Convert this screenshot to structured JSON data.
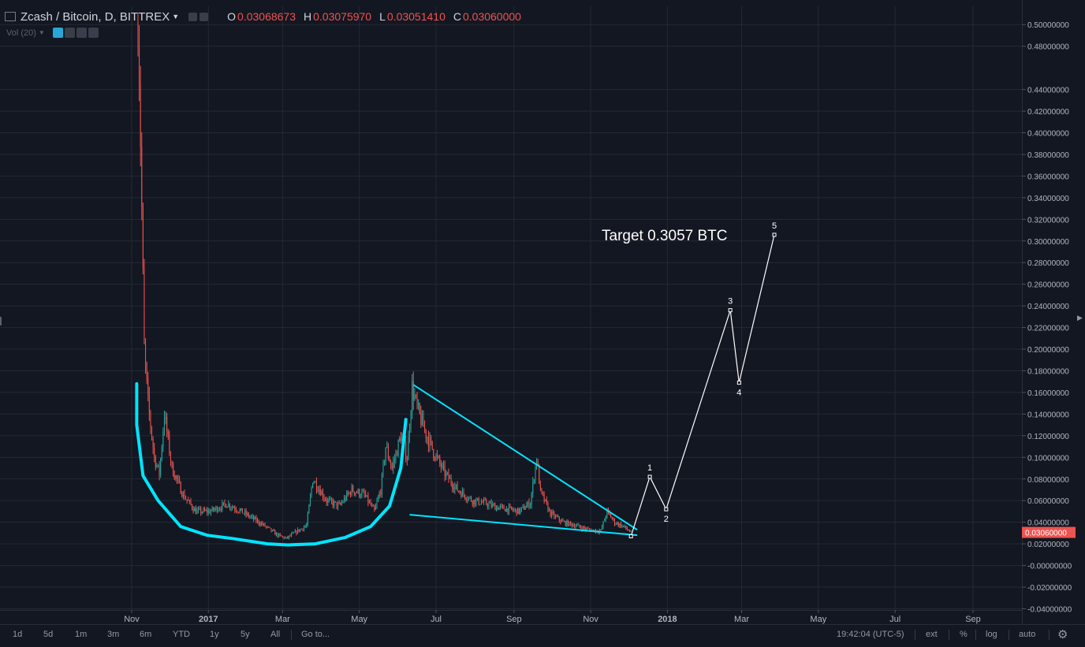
{
  "header": {
    "symbol": "Zcash / Bitcoin, D, BITTREX",
    "ohlc": [
      {
        "key": "O",
        "value": "0.03068673"
      },
      {
        "key": "H",
        "value": "0.03075970"
      },
      {
        "key": "L",
        "value": "0.03051410"
      },
      {
        "key": "C",
        "value": "0.03060000"
      }
    ]
  },
  "volume_indicator": {
    "label": "Vol (20)"
  },
  "chart_data": {
    "type": "candlestick",
    "symbol": "Zcash / Bitcoin",
    "interval": "D",
    "exchange": "BITTREX",
    "last_price": 0.0306,
    "last_price_label": "0.03060000",
    "y_axis": {
      "ylim": [
        -0.04,
        0.51
      ],
      "tick_values": [
        0.5,
        0.48,
        0.44,
        0.42,
        0.4,
        0.38,
        0.36,
        0.34,
        0.32,
        0.3,
        0.28,
        0.26,
        0.24,
        0.22,
        0.2,
        0.18,
        0.16,
        0.14,
        0.12,
        0.1,
        0.08,
        0.06,
        0.04,
        0.02,
        -0.0,
        -0.02,
        -0.04
      ],
      "tick_labels": [
        "0.50000000",
        "0.48000000",
        "0.44000000",
        "0.42000000",
        "0.40000000",
        "0.38000000",
        "0.36000000",
        "0.34000000",
        "0.32000000",
        "0.30000000",
        "0.28000000",
        "0.26000000",
        "0.24000000",
        "0.22000000",
        "0.20000000",
        "0.18000000",
        "0.16000000",
        "0.14000000",
        "0.12000000",
        "0.10000000",
        "0.08000000",
        "0.06000000",
        "0.04000000",
        "0.02000000",
        "-0.00000000",
        "-0.02000000",
        "-0.04000000"
      ]
    },
    "x_axis": {
      "range": [
        "2016-10-25",
        "2018-10-10"
      ],
      "ticks": [
        {
          "date": "2016-11-01",
          "label": "Nov"
        },
        {
          "date": "2017-01-01",
          "label": "2017"
        },
        {
          "date": "2017-03-01",
          "label": "Mar"
        },
        {
          "date": "2017-05-01",
          "label": "May"
        },
        {
          "date": "2017-07-01",
          "label": "Jul"
        },
        {
          "date": "2017-09-01",
          "label": "Sep"
        },
        {
          "date": "2017-11-01",
          "label": "Nov"
        },
        {
          "date": "2018-01-01",
          "label": "2018"
        },
        {
          "date": "2018-03-01",
          "label": "Mar"
        },
        {
          "date": "2018-05-01",
          "label": "May"
        },
        {
          "date": "2018-07-01",
          "label": "Jul"
        },
        {
          "date": "2018-09-01",
          "label": "Sep"
        }
      ]
    },
    "price_path": [
      [
        "2016-11-06",
        0.51
      ],
      [
        "2016-11-07",
        0.46
      ],
      [
        "2016-11-09",
        0.33
      ],
      [
        "2016-11-11",
        0.2
      ],
      [
        "2016-11-14",
        0.15
      ],
      [
        "2016-11-19",
        0.1
      ],
      [
        "2016-11-23",
        0.085
      ],
      [
        "2016-11-27",
        0.14
      ],
      [
        "2016-12-03",
        0.09
      ],
      [
        "2016-12-12",
        0.065
      ],
      [
        "2016-12-22",
        0.05
      ],
      [
        "2017-01-02",
        0.05
      ],
      [
        "2017-01-16",
        0.057
      ],
      [
        "2017-01-30",
        0.048
      ],
      [
        "2017-02-13",
        0.038
      ],
      [
        "2017-02-25",
        0.028
      ],
      [
        "2017-03-04",
        0.025
      ],
      [
        "2017-03-13",
        0.032
      ],
      [
        "2017-03-20",
        0.037
      ],
      [
        "2017-03-25",
        0.08
      ],
      [
        "2017-04-05",
        0.06
      ],
      [
        "2017-04-15",
        0.055
      ],
      [
        "2017-04-25",
        0.07
      ],
      [
        "2017-05-05",
        0.065
      ],
      [
        "2017-05-13",
        0.05
      ],
      [
        "2017-05-18",
        0.07
      ],
      [
        "2017-05-22",
        0.11
      ],
      [
        "2017-05-27",
        0.09
      ],
      [
        "2017-06-03",
        0.12
      ],
      [
        "2017-06-08",
        0.1
      ],
      [
        "2017-06-12",
        0.165
      ],
      [
        "2017-06-16",
        0.145
      ],
      [
        "2017-06-22",
        0.125
      ],
      [
        "2017-06-29",
        0.105
      ],
      [
        "2017-07-08",
        0.085
      ],
      [
        "2017-07-18",
        0.07
      ],
      [
        "2017-07-30",
        0.06
      ],
      [
        "2017-08-08",
        0.058
      ],
      [
        "2017-08-18",
        0.054
      ],
      [
        "2017-08-28",
        0.052
      ],
      [
        "2017-09-05",
        0.05
      ],
      [
        "2017-09-14",
        0.058
      ],
      [
        "2017-09-19",
        0.1
      ],
      [
        "2017-09-22",
        0.068
      ],
      [
        "2017-09-30",
        0.048
      ],
      [
        "2017-10-10",
        0.04
      ],
      [
        "2017-10-20",
        0.037
      ],
      [
        "2017-10-30",
        0.033
      ],
      [
        "2017-11-09",
        0.032
      ],
      [
        "2017-11-14",
        0.05
      ],
      [
        "2017-11-20",
        0.04
      ],
      [
        "2017-11-27",
        0.036
      ],
      [
        "2017-12-03",
        0.0306
      ]
    ],
    "annotations": {
      "target_text": "Target 0.3057 BTC",
      "projection": [
        {
          "date": "2017-12-03",
          "value": 0.027,
          "label": ""
        },
        {
          "date": "2017-12-18",
          "value": 0.082,
          "label": "1"
        },
        {
          "date": "2017-12-31",
          "value": 0.052,
          "label": "2"
        },
        {
          "date": "2018-02-20",
          "value": 0.236,
          "label": "3"
        },
        {
          "date": "2018-02-27",
          "value": 0.169,
          "label": "4"
        },
        {
          "date": "2018-03-27",
          "value": 0.3057,
          "label": "5"
        }
      ],
      "trendline_upper": [
        [
          "2017-06-13",
          0.167
        ],
        [
          "2017-12-08",
          0.033
        ]
      ],
      "trendline_lower": [
        [
          "2017-06-10",
          0.047
        ],
        [
          "2017-12-08",
          0.028
        ]
      ],
      "cup_curve": [
        [
          "2016-11-05",
          0.168
        ],
        [
          "2016-11-05",
          0.13
        ],
        [
          "2016-11-10",
          0.083
        ],
        [
          "2016-11-22",
          0.06
        ],
        [
          "2016-12-10",
          0.036
        ],
        [
          "2016-12-31",
          0.028
        ],
        [
          "2017-01-20",
          0.025
        ],
        [
          "2017-02-17",
          0.02
        ],
        [
          "2017-03-05",
          0.019
        ],
        [
          "2017-03-27",
          0.02
        ],
        [
          "2017-04-20",
          0.026
        ],
        [
          "2017-05-10",
          0.036
        ],
        [
          "2017-05-25",
          0.055
        ],
        [
          "2017-06-03",
          0.09
        ],
        [
          "2017-06-07",
          0.135
        ]
      ]
    },
    "colors": {
      "background": "#131722",
      "grid": "#242832",
      "up": "#26a69a",
      "down": "#ef5350",
      "annotation": "#00e5ff",
      "projection": "#ffffff",
      "last_price_bg": "#ef5350"
    },
    "grid": true
  },
  "bottom_toolbar": {
    "ranges": [
      "1d",
      "5d",
      "1m",
      "3m",
      "6m",
      "YTD",
      "1y",
      "5y",
      "All"
    ],
    "goto": "Go to...",
    "time": "19:42:04 (UTC-5)",
    "options": [
      "ext",
      "%",
      "log",
      "auto"
    ]
  }
}
